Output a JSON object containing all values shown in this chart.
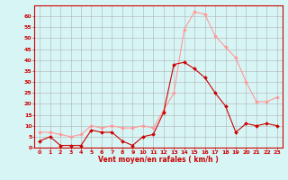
{
  "x": [
    0,
    1,
    2,
    3,
    4,
    5,
    6,
    7,
    8,
    9,
    10,
    11,
    12,
    13,
    14,
    15,
    16,
    17,
    18,
    19,
    20,
    21,
    22,
    23
  ],
  "avg_wind": [
    3,
    5,
    1,
    1,
    1,
    8,
    7,
    7,
    3,
    1,
    5,
    6,
    16,
    38,
    39,
    36,
    32,
    25,
    19,
    7,
    11,
    10,
    11,
    10
  ],
  "gust_wind": [
    7,
    7,
    6,
    5,
    6,
    10,
    9,
    10,
    9,
    9,
    10,
    9,
    17,
    25,
    54,
    62,
    61,
    51,
    46,
    41,
    30,
    21,
    21,
    23
  ],
  "avg_color": "#cc0000",
  "gust_color": "#ff9999",
  "bg_color": "#d8f5f5",
  "grid_color": "#b0b0b0",
  "xlabel": "Vent moyen/en rafales ( km/h )",
  "xlabel_color": "#cc0000",
  "ylim": [
    0,
    65
  ],
  "yticks": [
    0,
    5,
    10,
    15,
    20,
    25,
    30,
    35,
    40,
    45,
    50,
    55,
    60
  ],
  "xticks": [
    0,
    1,
    2,
    3,
    4,
    5,
    6,
    7,
    8,
    9,
    10,
    11,
    12,
    13,
    14,
    15,
    16,
    17,
    18,
    19,
    20,
    21,
    22,
    23
  ]
}
